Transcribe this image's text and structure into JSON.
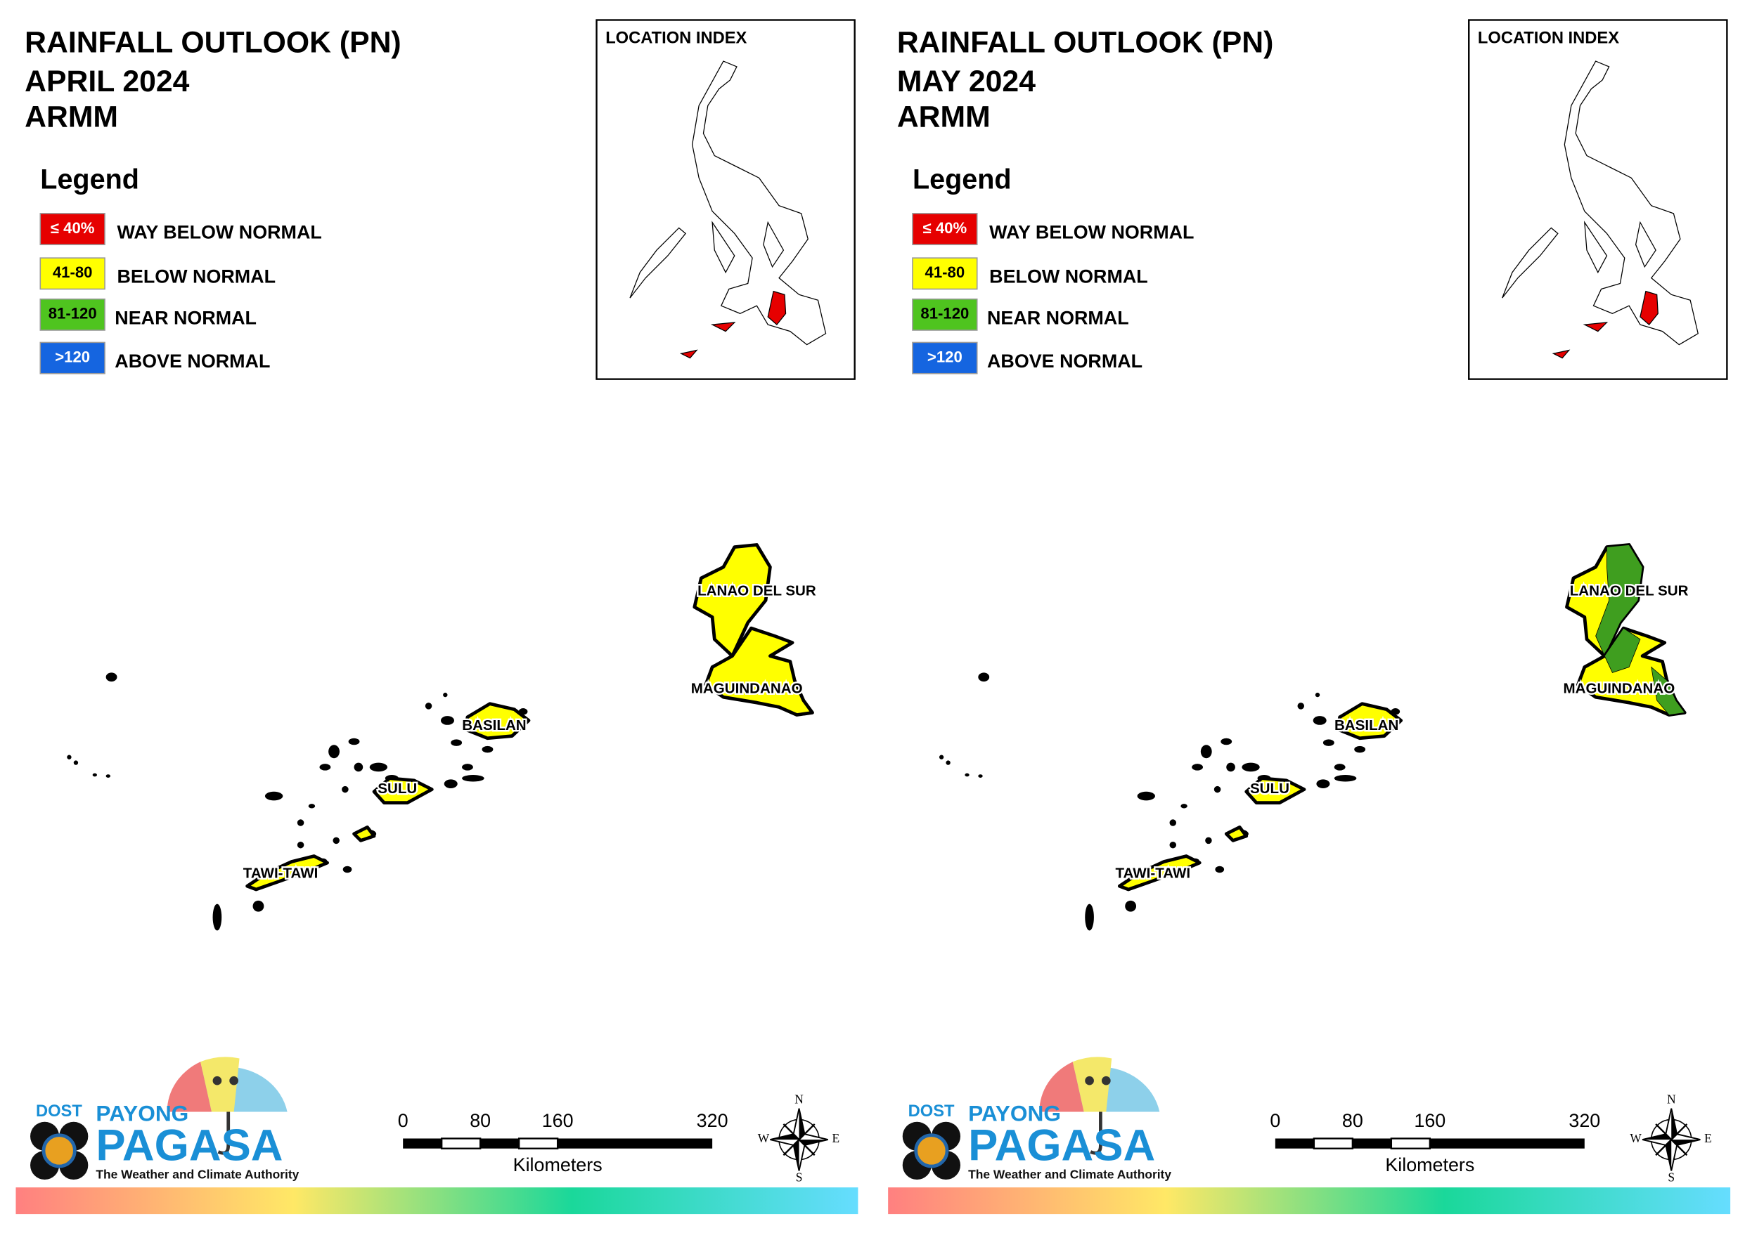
{
  "panels": [
    {
      "title": [
        "RAINFALL OUTLOOK (PN)",
        "APRIL 2024",
        "ARMM"
      ],
      "legend": {
        "title": "Legend",
        "items": [
          {
            "swatch": "≤ 40%",
            "label": "WAY BELOW NORMAL",
            "color": "#e60000"
          },
          {
            "swatch": "41-80",
            "label": "BELOW NORMAL",
            "color": "#ffff00"
          },
          {
            "swatch": "81-120",
            "label": "NEAR NORMAL",
            "color": "#4fc41f"
          },
          {
            "swatch": ">120",
            "label": "ABOVE NORMAL",
            "color": "#1565e0"
          }
        ]
      },
      "location_index": "LOCATION INDEX",
      "provinces": [
        {
          "name": "LANAO DEL SUR",
          "colors": [
            "#ffff00"
          ]
        },
        {
          "name": "MAGUINDANAO",
          "colors": [
            "#ffff00"
          ]
        },
        {
          "name": "BASILAN",
          "colors": [
            "#ffff00"
          ]
        },
        {
          "name": "SULU",
          "colors": [
            "#ffff00"
          ]
        },
        {
          "name": "TAWI-TAWI",
          "colors": [
            "#ffff00"
          ]
        }
      ],
      "scale": {
        "ticks": [
          0,
          80,
          160,
          320
        ],
        "unit": "Kilometers"
      },
      "compass": {
        "n": "N",
        "e": "E",
        "s": "S",
        "w": "W"
      },
      "logo": {
        "dost": "DOST",
        "payong": "PAYONG",
        "pagasa": "PAGASA",
        "tagline": "The Weather and Climate Authority"
      }
    },
    {
      "title": [
        "RAINFALL OUTLOOK (PN)",
        "MAY 2024",
        "ARMM"
      ],
      "legend": {
        "title": "Legend",
        "items": [
          {
            "swatch": "≤ 40%",
            "label": "WAY BELOW NORMAL",
            "color": "#e60000"
          },
          {
            "swatch": "41-80",
            "label": "BELOW NORMAL",
            "color": "#ffff00"
          },
          {
            "swatch": "81-120",
            "label": "NEAR NORMAL",
            "color": "#4fc41f"
          },
          {
            "swatch": ">120",
            "label": "ABOVE NORMAL",
            "color": "#1565e0"
          }
        ]
      },
      "location_index": "LOCATION INDEX",
      "provinces": [
        {
          "name": "LANAO DEL SUR",
          "colors": [
            "#ffff00",
            "#3f9e1f"
          ]
        },
        {
          "name": "MAGUINDANAO",
          "colors": [
            "#ffff00",
            "#3f9e1f"
          ]
        },
        {
          "name": "BASILAN",
          "colors": [
            "#ffff00"
          ]
        },
        {
          "name": "SULU",
          "colors": [
            "#ffff00"
          ]
        },
        {
          "name": "TAWI-TAWI",
          "colors": [
            "#ffff00"
          ]
        }
      ],
      "scale": {
        "ticks": [
          0,
          80,
          160,
          320
        ],
        "unit": "Kilometers"
      },
      "compass": {
        "n": "N",
        "e": "E",
        "s": "S",
        "w": "W"
      },
      "logo": {
        "dost": "DOST",
        "payong": "PAYONG",
        "pagasa": "PAGASA",
        "tagline": "The Weather and Climate Authority"
      }
    }
  ]
}
